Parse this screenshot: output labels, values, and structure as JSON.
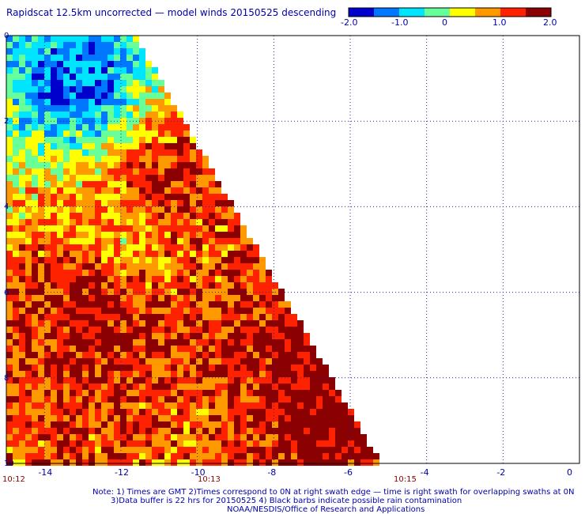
{
  "title": "Rapidscat 12.5km uncorrected — model winds 20150525 descending",
  "colorbar": {
    "tick_labels": [
      "-2.0",
      "-1.0",
      "0",
      "1.0",
      "2.0"
    ],
    "colors": [
      "#0000cc",
      "#0077ff",
      "#00e5ff",
      "#66ff99",
      "#ffff00",
      "#ff9900",
      "#ff2200",
      "#8b0000"
    ]
  },
  "notes": {
    "line1": "Note: 1) Times are GMT 2)Times correspond to 0N at right swath edge — time is right swath for overlapping swaths at 0N",
    "line2": "3)Data buffer is 22 hrs for 20150525 4) Black barbs indicate possible rain contamination",
    "line3": "NOAA/NESDIS/Office of Research and Applications"
  },
  "times": [
    "10:12",
    "10:13",
    "10:15"
  ],
  "chart_data": {
    "type": "heatmap",
    "title": "Rapidscat 12.5km uncorrected — model winds 20150525 descending",
    "xlim": [
      -15,
      0
    ],
    "ylim": [
      0,
      10
    ],
    "x_tick_labels": [
      "-14",
      "-12",
      "-10",
      "-8",
      "-6",
      "-4",
      "-2",
      "0"
    ],
    "y_tick_labels": [
      "0",
      "2",
      "4",
      "6",
      "8",
      "10"
    ],
    "grid": true,
    "colorscale_range": [
      -2.0,
      2.0
    ],
    "swath_edge": [
      [
        -11.5,
        0.2
      ],
      [
        -5.2,
        10
      ]
    ],
    "regions": [
      {
        "desc": "negative difference area near top-left",
        "x": -13,
        "y": 1.2,
        "value": -1.6
      },
      {
        "desc": "positive difference band",
        "x": -11,
        "y": 3.5,
        "value": 1.6
      },
      {
        "desc": "moderate values mid-left",
        "x": -12,
        "y": 5.0,
        "value": 0.3
      },
      {
        "desc": "strong positive lower-left",
        "x": -12.5,
        "y": 6.2,
        "value": 2.0
      },
      {
        "desc": "strong positive lower-right",
        "x": -7,
        "y": 8.2,
        "value": 2.0
      },
      {
        "desc": "mixed values bottom",
        "x": -10,
        "y": 9.2,
        "value": 1.0
      }
    ]
  }
}
